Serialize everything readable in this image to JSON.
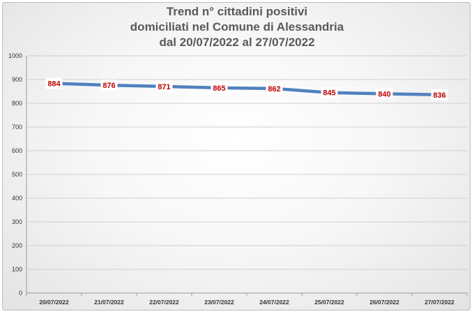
{
  "chart_data": {
    "type": "line",
    "title_lines": [
      "Trend n° cittadini positivi",
      "domiciliati nel Comune di Alessandria",
      "dal 20/07/2022 al 27/07/2022"
    ],
    "categories": [
      "20/07/2022",
      "21/07/2022",
      "22/07/2022",
      "23/07/2022",
      "24/07/2022",
      "25/07/2022",
      "26/07/2022",
      "27/07/2022"
    ],
    "series": [
      {
        "values": [
          884,
          876,
          871,
          865,
          862,
          845,
          840,
          836
        ],
        "color": "#4f81bd"
      }
    ],
    "data_labels": [
      "884",
      "876",
      "871",
      "865",
      "862",
      "845",
      "840",
      "836"
    ],
    "ylim": [
      0,
      1000
    ],
    "yticks": [
      0,
      100,
      200,
      300,
      400,
      500,
      600,
      700,
      800,
      900,
      1000
    ],
    "ytick_labels": [
      "0",
      "100",
      "200",
      "300",
      "400",
      "500",
      "600",
      "700",
      "800",
      "900",
      "1000"
    ],
    "grid": true,
    "label_color": "#c00000",
    "xlabel": "",
    "ylabel": ""
  }
}
